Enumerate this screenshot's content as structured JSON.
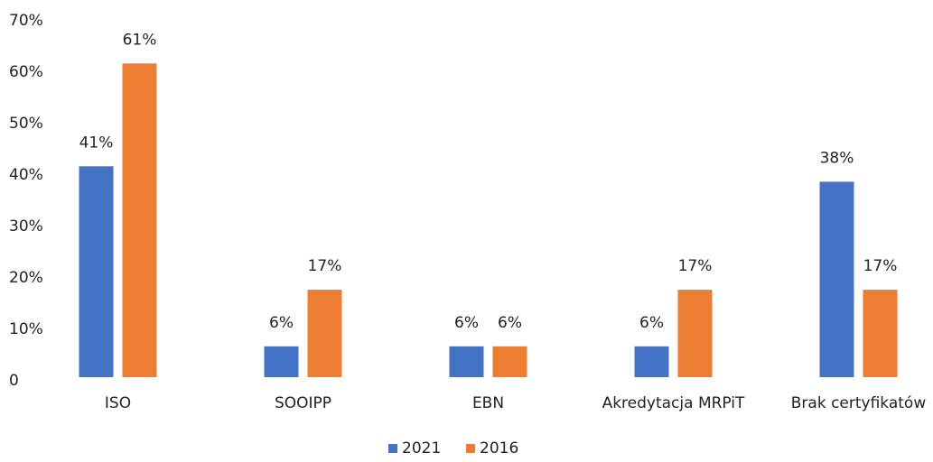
{
  "chart_data": {
    "type": "bar",
    "categories": [
      "ISO",
      "SOOIPP",
      "EBN",
      "Akredytacja MRPiT",
      "Brak certyfikatów"
    ],
    "series": [
      {
        "name": "2021",
        "color": "#4472c4",
        "values": [
          41,
          6,
          6,
          6,
          38
        ],
        "value_labels": [
          "41%",
          "6%",
          "6%",
          "6%",
          "38%"
        ]
      },
      {
        "name": "2016",
        "color": "#ed7d31",
        "values": [
          61,
          17,
          6,
          17,
          17
        ],
        "value_labels": [
          "61%",
          "17%",
          "6%",
          "17%",
          "17%"
        ]
      }
    ],
    "ylim": [
      0,
      70
    ],
    "yticks": [
      0,
      {
        "value": 10,
        "label": "10%"
      },
      {
        "value": 20,
        "label": "20%"
      },
      {
        "value": 30,
        "label": "30%"
      },
      {
        "value": 40,
        "label": "40%"
      },
      {
        "value": 50,
        "label": "50%"
      },
      {
        "value": 60,
        "label": "60%"
      },
      {
        "value": 70,
        "label": "70%"
      }
    ],
    "legend": "bottom"
  }
}
